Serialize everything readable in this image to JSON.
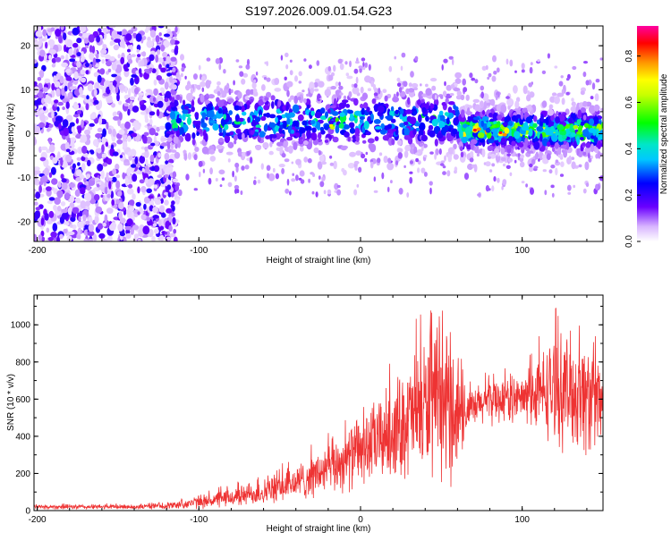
{
  "title": "S197.2026.009.01.54.G23",
  "colorbar": {
    "label": "Normalized spectral amplitude",
    "ticks": [
      "0.0",
      "0.2",
      "0.4",
      "0.6",
      "0.8"
    ],
    "tick_values": [
      0.0,
      0.2,
      0.4,
      0.6,
      0.8
    ],
    "range": [
      0.0,
      0.93
    ]
  },
  "chart_data": [
    {
      "type": "heatmap",
      "name": "spectrogram",
      "xlabel": "Height of straight line (km)",
      "ylabel": "Frequency (Hz)",
      "xlim": [
        -202,
        150
      ],
      "ylim": [
        -24.5,
        24.5
      ],
      "xticks": [
        -200,
        -100,
        0,
        100
      ],
      "xtick_labels": [
        "-200",
        "-100",
        "0",
        "100"
      ],
      "yticks": [
        -20,
        -10,
        0,
        10,
        20
      ],
      "ytick_labels": [
        "-20",
        "-10",
        "0",
        "10",
        "20"
      ],
      "regions": [
        {
          "x_range": [
            -202,
            -113
          ],
          "f_center": 0,
          "f_halfwidth": 24.5,
          "amplitude": 0.2,
          "description": "broadband noise"
        },
        {
          "x_range": [
            -120,
            62
          ],
          "f_center": 3,
          "f_halfwidth": 6,
          "amplitude": 0.3,
          "description": "signal band"
        },
        {
          "x_range": [
            62,
            150
          ],
          "f_center": 0.8,
          "f_halfwidth": 4.5,
          "amplitude": 0.45,
          "description": "strong signal band"
        }
      ],
      "hotspots": [
        {
          "x": 72,
          "f": 0.8,
          "amplitude": 0.92
        },
        {
          "x": 88,
          "f": 0,
          "amplitude": 0.92
        },
        {
          "x": -17,
          "f": 1.5,
          "amplitude": 0.75
        }
      ]
    },
    {
      "type": "line",
      "name": "snr",
      "xlabel": "Height of straight line (km)",
      "ylabel": "SNR (10 * v/v)",
      "xlim": [
        -202,
        150
      ],
      "ylim": [
        0,
        1160
      ],
      "xticks": [
        -200,
        -100,
        0,
        100
      ],
      "xtick_labels": [
        "-200",
        "-100",
        "0",
        "100"
      ],
      "yticks": [
        0,
        200,
        400,
        600,
        800,
        1000
      ],
      "ytick_labels": [
        "0",
        "200",
        "400",
        "600",
        "800",
        "1000"
      ],
      "color": "#ee3333",
      "envelope": {
        "x": [
          -202,
          -140,
          -120,
          -100,
          -80,
          -60,
          -40,
          -20,
          0,
          20,
          40,
          50,
          60,
          65,
          80,
          100,
          120,
          140,
          150
        ],
        "center": [
          20,
          20,
          25,
          45,
          70,
          100,
          150,
          220,
          320,
          430,
          560,
          560,
          540,
          520,
          600,
          600,
          660,
          620,
          560
        ],
        "spread": [
          15,
          15,
          20,
          40,
          60,
          80,
          110,
          160,
          220,
          300,
          430,
          450,
          430,
          120,
          150,
          140,
          340,
          380,
          300
        ]
      }
    }
  ]
}
